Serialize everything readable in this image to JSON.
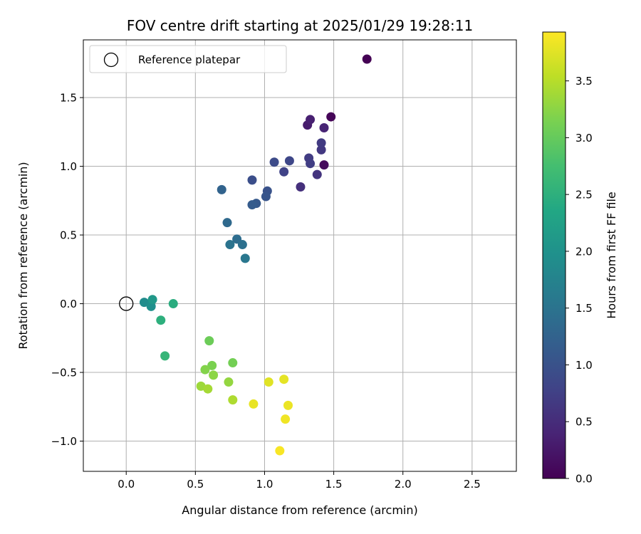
{
  "chart_data": {
    "type": "scatter",
    "title": "FOV centre drift starting at 2025/01/29 19:28:11",
    "xlabel": "Angular distance from reference (arcmin)",
    "ylabel": "Rotation from reference (arcmin)",
    "xlim": [
      -0.31,
      2.82
    ],
    "ylim": [
      -1.22,
      1.92
    ],
    "xticks": [
      0.0,
      0.5,
      1.0,
      1.5,
      2.0,
      2.5
    ],
    "yticks": [
      -1.0,
      -0.5,
      0.0,
      0.5,
      1.0,
      1.5
    ],
    "xtick_labels": [
      "0.0",
      "0.5",
      "1.0",
      "1.5",
      "2.0",
      "2.5"
    ],
    "ytick_labels": [
      "−1.0",
      "−0.5",
      "0.0",
      "0.5",
      "1.0",
      "1.5"
    ],
    "grid": true,
    "legend": {
      "position": "top-left",
      "entries": [
        "Reference platepar"
      ]
    },
    "reference": {
      "x": 0.0,
      "y": 0.0
    },
    "colorbar": {
      "label": "Hours from first FF file",
      "colormap": "viridis",
      "range": [
        0.0,
        3.93
      ],
      "ticks": [
        0.0,
        0.5,
        1.0,
        1.5,
        2.0,
        2.5,
        3.0,
        3.5
      ],
      "tick_labels": [
        "0.0",
        "0.5",
        "1.0",
        "1.5",
        "2.0",
        "2.5",
        "3.0",
        "3.5"
      ]
    },
    "points": [
      {
        "x": 1.74,
        "y": 1.78,
        "c": 0.0
      },
      {
        "x": 1.48,
        "y": 1.36,
        "c": 0.05
      },
      {
        "x": 1.43,
        "y": 1.01,
        "c": 0.1
      },
      {
        "x": 1.31,
        "y": 1.3,
        "c": 0.3
      },
      {
        "x": 1.33,
        "y": 1.34,
        "c": 0.35
      },
      {
        "x": 1.43,
        "y": 1.28,
        "c": 0.4
      },
      {
        "x": 1.26,
        "y": 0.85,
        "c": 0.55
      },
      {
        "x": 1.38,
        "y": 0.94,
        "c": 0.6
      },
      {
        "x": 1.41,
        "y": 1.12,
        "c": 0.65
      },
      {
        "x": 1.41,
        "y": 1.17,
        "c": 0.68
      },
      {
        "x": 1.32,
        "y": 1.06,
        "c": 0.7
      },
      {
        "x": 1.33,
        "y": 1.02,
        "c": 0.72
      },
      {
        "x": 1.14,
        "y": 0.96,
        "c": 0.78
      },
      {
        "x": 1.18,
        "y": 1.04,
        "c": 0.85
      },
      {
        "x": 1.07,
        "y": 1.03,
        "c": 0.9
      },
      {
        "x": 0.91,
        "y": 0.9,
        "c": 0.95
      },
      {
        "x": 1.02,
        "y": 0.82,
        "c": 1.0
      },
      {
        "x": 1.01,
        "y": 0.78,
        "c": 1.05
      },
      {
        "x": 0.94,
        "y": 0.73,
        "c": 1.1
      },
      {
        "x": 0.91,
        "y": 0.72,
        "c": 1.15
      },
      {
        "x": 0.69,
        "y": 0.83,
        "c": 1.25
      },
      {
        "x": 0.73,
        "y": 0.59,
        "c": 1.35
      },
      {
        "x": 0.8,
        "y": 0.47,
        "c": 1.4
      },
      {
        "x": 0.84,
        "y": 0.43,
        "c": 1.45
      },
      {
        "x": 0.75,
        "y": 0.43,
        "c": 1.5
      },
      {
        "x": 0.86,
        "y": 0.33,
        "c": 1.55
      },
      {
        "x": 0.13,
        "y": 0.01,
        "c": 1.9
      },
      {
        "x": 0.18,
        "y": -0.02,
        "c": 1.95
      },
      {
        "x": 0.19,
        "y": 0.03,
        "c": 2.1
      },
      {
        "x": 0.34,
        "y": 0.0,
        "c": 2.45
      },
      {
        "x": 0.25,
        "y": -0.12,
        "c": 2.5
      },
      {
        "x": 0.28,
        "y": -0.38,
        "c": 2.6
      },
      {
        "x": 0.6,
        "y": -0.27,
        "c": 3.05
      },
      {
        "x": 0.77,
        "y": -0.43,
        "c": 3.1
      },
      {
        "x": 0.62,
        "y": -0.45,
        "c": 3.15
      },
      {
        "x": 0.57,
        "y": -0.48,
        "c": 3.2
      },
      {
        "x": 0.63,
        "y": -0.52,
        "c": 3.25
      },
      {
        "x": 0.74,
        "y": -0.57,
        "c": 3.3
      },
      {
        "x": 0.54,
        "y": -0.6,
        "c": 3.35
      },
      {
        "x": 0.59,
        "y": -0.62,
        "c": 3.4
      },
      {
        "x": 0.77,
        "y": -0.7,
        "c": 3.45
      },
      {
        "x": 1.03,
        "y": -0.57,
        "c": 3.75
      },
      {
        "x": 1.14,
        "y": -0.55,
        "c": 3.78
      },
      {
        "x": 0.92,
        "y": -0.73,
        "c": 3.8
      },
      {
        "x": 1.17,
        "y": -0.74,
        "c": 3.82
      },
      {
        "x": 1.15,
        "y": -0.84,
        "c": 3.85
      },
      {
        "x": 1.11,
        "y": -1.07,
        "c": 3.9
      }
    ]
  }
}
